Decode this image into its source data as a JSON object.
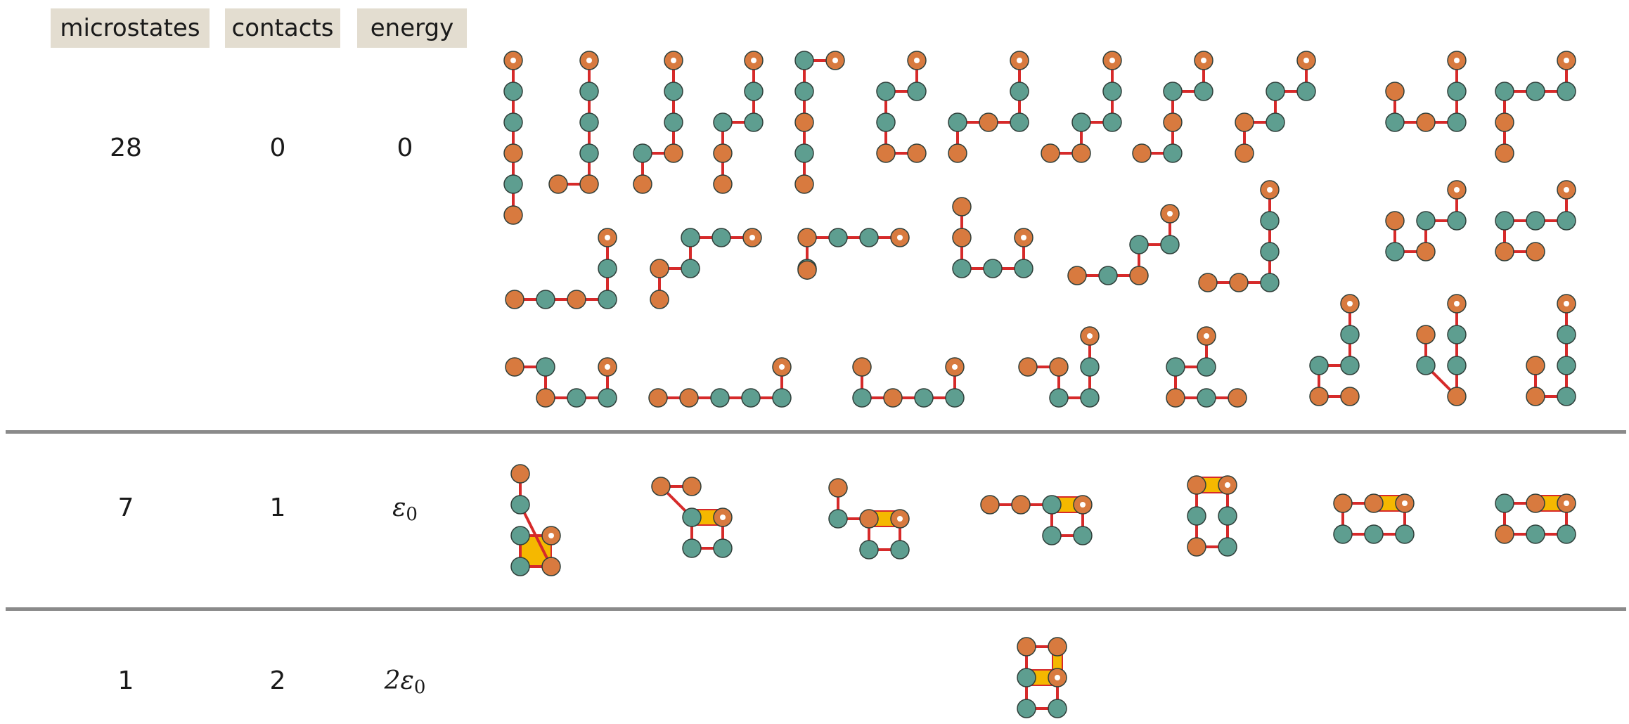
{
  "headers": {
    "microstates": "microstates",
    "contacts": "contacts",
    "energy": "energy"
  },
  "rows": [
    {
      "microstates": "28",
      "contacts": "0",
      "energy_coef": "",
      "energy_zero": "0"
    },
    {
      "microstates": "7",
      "contacts": "1",
      "energy_coef": ""
    },
    {
      "microstates": "1",
      "contacts": "2",
      "energy_coef": "2"
    }
  ],
  "energy_symbol": "ε",
  "energy_subscript": "0",
  "colors": {
    "polar_bead": "#d87a3f",
    "hydrophobic_bead": "#5e9e90",
    "bond": "#d62a2a",
    "contact": "#f5b800",
    "header_bg": "#e3ddd0",
    "separator": "#8a8a8a"
  },
  "conformations": {
    "row0": [
      "PHHPHP",
      "PHHPHP",
      "PHHPHP",
      "PHHPHP",
      "PHHPHP",
      "PHHPHP",
      "PHHPHP",
      "PHHPHP",
      "PHHPHP",
      "PHHPHP",
      "PHHPHP",
      "PHHPHP",
      "PHHPHP",
      "PHHPHP",
      "PHHPHP",
      "PHHPHP",
      "PHHPHP",
      "PHHPHP",
      "PHHPHP",
      "PHHPHP",
      "PHHPHP",
      "PHHPHP",
      "PHHPHP",
      "PHHPHP",
      "PHHPHP",
      "PHHPHP",
      "PHHPHP",
      "PHHPHP"
    ],
    "row1": [
      "PHHPHP",
      "PHHPHP",
      "PHHPHP",
      "PHHPHP",
      "PHHPHP",
      "PHHPHP",
      "PHHPHP"
    ],
    "row2": [
      "PHHPHP"
    ]
  }
}
